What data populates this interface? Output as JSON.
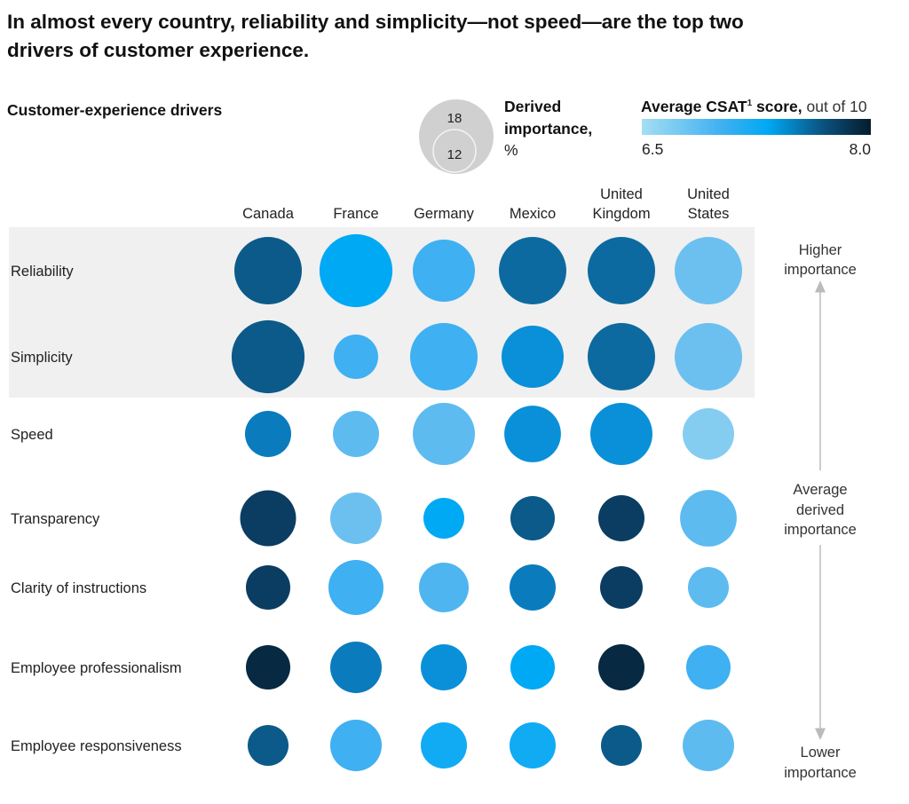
{
  "chart_data": {
    "type": "bubble-matrix",
    "title": [
      "In almost every country, reliability and simplicity—not speed—are the top two",
      "drivers of customer experience."
    ],
    "row_header": "Customer-experience drivers",
    "size_legend": {
      "label": [
        "Derived",
        "importance,",
        "%"
      ],
      "values": [
        18,
        12
      ]
    },
    "color_legend": {
      "label_bold": "Average CSAT",
      "superscript": "1",
      "label_bold_end": " score,",
      "label_rest": " out of 10",
      "min_label": "6.5",
      "max_label": "8.0",
      "range": [
        6.5,
        8.0
      ]
    },
    "columns": [
      "Canada",
      "France",
      "Germany",
      "Mexico",
      [
        "United",
        "Kingdom"
      ],
      [
        "United",
        "States"
      ]
    ],
    "column_names": [
      "Canada",
      "France",
      "Germany",
      "Mexico",
      "United Kingdom",
      "United States"
    ],
    "highlight_rows": [
      "Reliability",
      "Simplicity"
    ],
    "rows": [
      {
        "label": "Reliability",
        "importance": [
          14.7,
          17.2,
          12.5,
          14.7,
          14.7,
          14.7
        ],
        "csat": [
          7.6,
          7.2,
          7.0,
          7.5,
          7.5,
          6.85
        ]
      },
      {
        "label": "Simplicity",
        "importance": [
          17.2,
          6.4,
          14.7,
          12.5,
          14.7,
          14.7
        ],
        "csat": [
          7.6,
          7.0,
          7.0,
          7.3,
          7.5,
          6.85
        ]
      },
      {
        "label": "Speed",
        "importance": [
          6.9,
          6.9,
          12.5,
          10.4,
          12.5,
          8.6
        ],
        "csat": [
          7.4,
          6.9,
          6.9,
          7.3,
          7.3,
          6.7
        ]
      },
      {
        "label": "Transparency",
        "importance": [
          10.1,
          8.6,
          5.4,
          6.4,
          6.9,
          10.4
        ],
        "csat": [
          7.75,
          6.85,
          7.2,
          7.6,
          7.75,
          6.9
        ]
      },
      {
        "label": "Clarity of instructions",
        "importance": [
          6.4,
          9.8,
          8.0,
          6.9,
          5.9,
          5.4
        ],
        "csat": [
          7.75,
          7.0,
          6.95,
          7.4,
          7.75,
          6.9
        ]
      },
      {
        "label": "Employee professionalism",
        "importance": [
          6.4,
          8.6,
          6.9,
          6.4,
          6.9,
          6.4
        ],
        "csat": [
          7.9,
          7.4,
          7.3,
          7.2,
          7.9,
          7.0
        ]
      },
      {
        "label": "Employee responsiveness",
        "importance": [
          5.4,
          8.6,
          6.9,
          6.9,
          5.4,
          8.6
        ],
        "csat": [
          7.6,
          7.0,
          7.15,
          7.15,
          7.6,
          6.9
        ]
      }
    ],
    "annotations": {
      "top": [
        "Higher",
        "importance"
      ],
      "middle": [
        "Average",
        "derived",
        "importance"
      ],
      "bottom": [
        "Lower",
        "importance"
      ]
    },
    "colors": {
      "band": "#f0f0f0",
      "scale_low": "#a4def3",
      "scale_mid": "#00a9f4",
      "scale_high": "#051c2c",
      "legend_circle": "#d0d0d0"
    }
  }
}
